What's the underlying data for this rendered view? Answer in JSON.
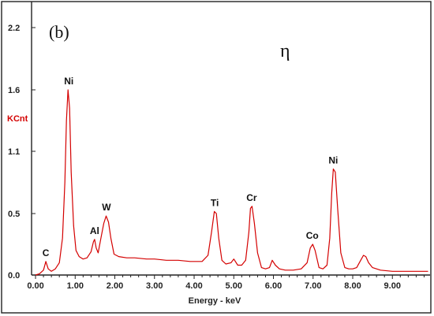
{
  "chart_data": {
    "type": "line",
    "title": "",
    "panel_label": "(b)",
    "phase_label": "η",
    "xlabel": "Energy - keV",
    "ylabel_unit": "KCnt",
    "xlim": [
      -0.1,
      9.95
    ],
    "ylim": [
      0,
      2.2
    ],
    "x_ticks": [
      0,
      1,
      2,
      3,
      4,
      5,
      6,
      7,
      8,
      9
    ],
    "x_tick_labels": [
      "0.00",
      "1.00",
      "2.00",
      "3.00",
      "4.00",
      "5.00",
      "6.00",
      "7.00",
      "8.00",
      "9.00"
    ],
    "y_ticks": [
      0,
      0.5,
      1.1,
      1.6,
      2.2
    ],
    "y_tick_labels": [
      "0.0",
      "0.5",
      "1.1",
      "1.6",
      "2.2"
    ],
    "grid": false,
    "series_color": "#d40000",
    "series": [
      {
        "name": "",
        "x": [
          0.0,
          0.1,
          0.2,
          0.26,
          0.32,
          0.4,
          0.5,
          0.6,
          0.68,
          0.74,
          0.78,
          0.82,
          0.86,
          0.9,
          0.96,
          1.02,
          1.1,
          1.2,
          1.3,
          1.4,
          1.46,
          1.49,
          1.53,
          1.58,
          1.65,
          1.72,
          1.78,
          1.84,
          1.9,
          1.98,
          2.1,
          2.3,
          2.5,
          2.8,
          3.0,
          3.3,
          3.6,
          3.9,
          4.2,
          4.35,
          4.44,
          4.51,
          4.56,
          4.62,
          4.7,
          4.8,
          4.93,
          5.0,
          5.1,
          5.2,
          5.3,
          5.38,
          5.42,
          5.46,
          5.52,
          5.6,
          5.7,
          5.8,
          5.9,
          5.97,
          6.05,
          6.15,
          6.3,
          6.5,
          6.7,
          6.85,
          6.93,
          6.99,
          7.05,
          7.15,
          7.25,
          7.35,
          7.42,
          7.47,
          7.51,
          7.56,
          7.62,
          7.7,
          7.8,
          7.9,
          8.0,
          8.1,
          8.2,
          8.27,
          8.33,
          8.4,
          8.5,
          8.7,
          9.0,
          9.3,
          9.6,
          9.9
        ],
        "y": [
          0.0,
          0.01,
          0.04,
          0.11,
          0.05,
          0.03,
          0.05,
          0.1,
          0.3,
          0.8,
          1.35,
          1.6,
          1.45,
          0.9,
          0.4,
          0.2,
          0.15,
          0.13,
          0.14,
          0.19,
          0.27,
          0.29,
          0.22,
          0.18,
          0.3,
          0.42,
          0.48,
          0.43,
          0.3,
          0.17,
          0.15,
          0.14,
          0.14,
          0.13,
          0.13,
          0.12,
          0.12,
          0.11,
          0.11,
          0.16,
          0.35,
          0.52,
          0.5,
          0.3,
          0.12,
          0.09,
          0.1,
          0.13,
          0.08,
          0.08,
          0.12,
          0.35,
          0.55,
          0.57,
          0.42,
          0.18,
          0.06,
          0.05,
          0.06,
          0.12,
          0.08,
          0.05,
          0.04,
          0.04,
          0.05,
          0.1,
          0.22,
          0.25,
          0.2,
          0.06,
          0.05,
          0.08,
          0.3,
          0.7,
          0.93,
          0.9,
          0.55,
          0.18,
          0.06,
          0.05,
          0.05,
          0.06,
          0.12,
          0.16,
          0.15,
          0.1,
          0.06,
          0.04,
          0.03,
          0.03,
          0.03,
          0.03
        ]
      }
    ],
    "annotations": [
      {
        "text": "C",
        "x": 0.26,
        "y": 0.11
      },
      {
        "text": "Ni",
        "x": 0.84,
        "y": 1.6
      },
      {
        "text": "Al",
        "x": 1.49,
        "y": 0.29
      },
      {
        "text": "W",
        "x": 1.79,
        "y": 0.48
      },
      {
        "text": "Ti",
        "x": 4.52,
        "y": 0.52
      },
      {
        "text": "Cr",
        "x": 5.45,
        "y": 0.57
      },
      {
        "text": "Co",
        "x": 6.98,
        "y": 0.25
      },
      {
        "text": "Ni",
        "x": 7.51,
        "y": 0.93
      }
    ]
  }
}
